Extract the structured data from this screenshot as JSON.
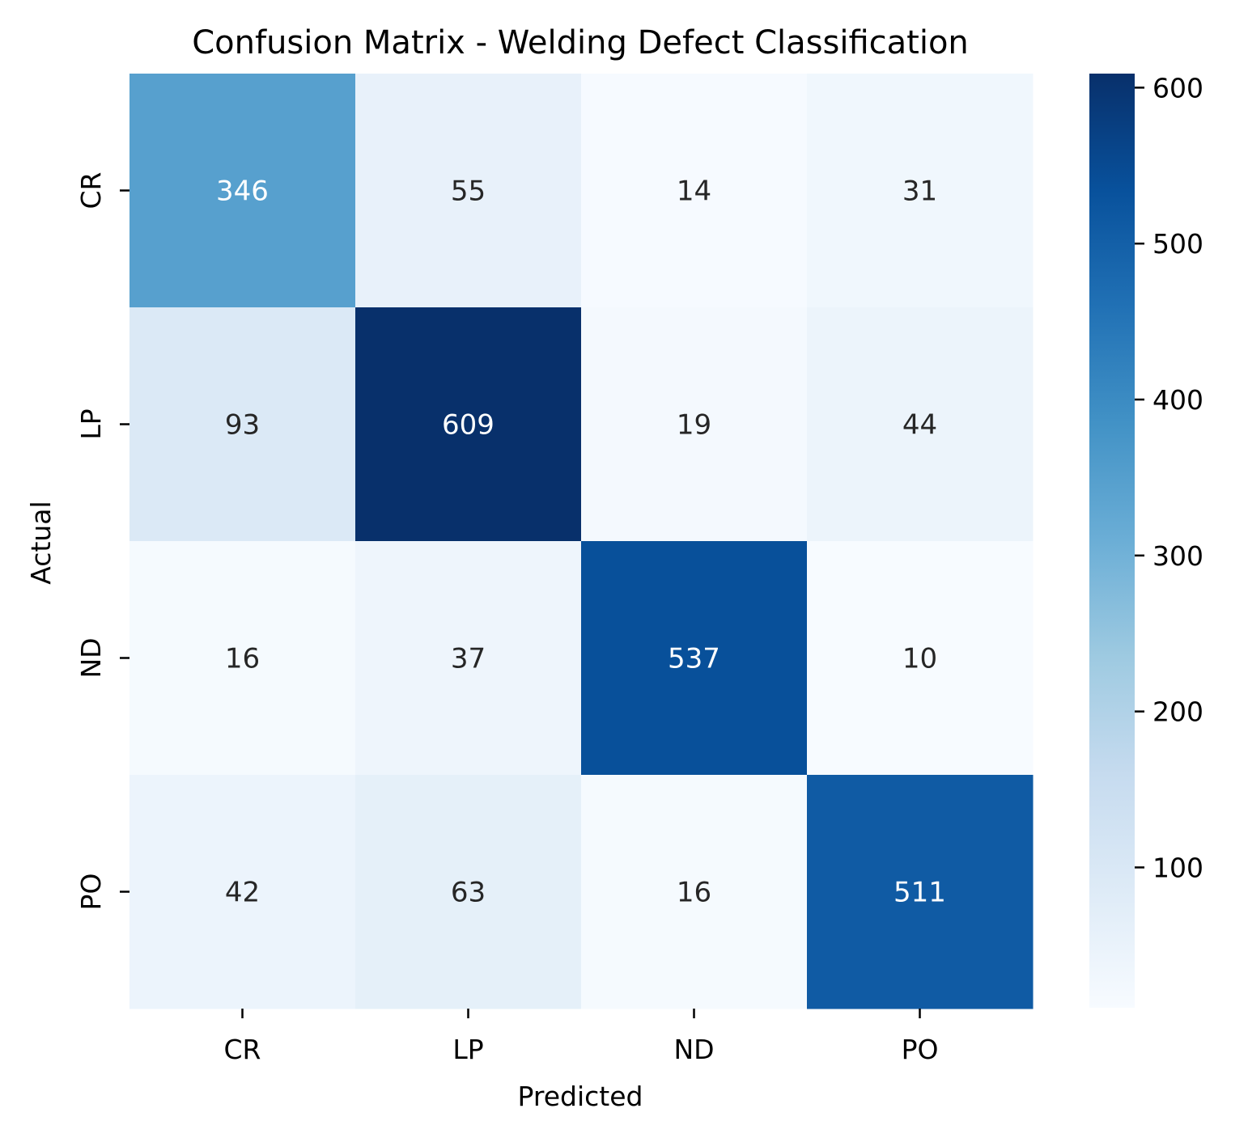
{
  "chart_data": {
    "type": "heatmap",
    "title": "Confusion Matrix - Welding Defect Classification",
    "xlabel": "Predicted",
    "ylabel": "Actual",
    "x_categories": [
      "CR",
      "LP",
      "ND",
      "PO"
    ],
    "y_categories": [
      "CR",
      "LP",
      "ND",
      "PO"
    ],
    "values": [
      [
        346,
        55,
        14,
        31
      ],
      [
        93,
        609,
        19,
        44
      ],
      [
        16,
        37,
        537,
        10
      ],
      [
        42,
        63,
        16,
        511
      ]
    ],
    "colormap": "Blues",
    "color_range": [
      10,
      609
    ],
    "colorbar_ticks": [
      100,
      200,
      300,
      400,
      500,
      600
    ],
    "colorbar_tick_labels": [
      "100",
      "200",
      "300",
      "400",
      "500",
      "600"
    ],
    "annotation_colors": {
      "dark_text": "#262626",
      "light_text": "#ffffff"
    }
  }
}
